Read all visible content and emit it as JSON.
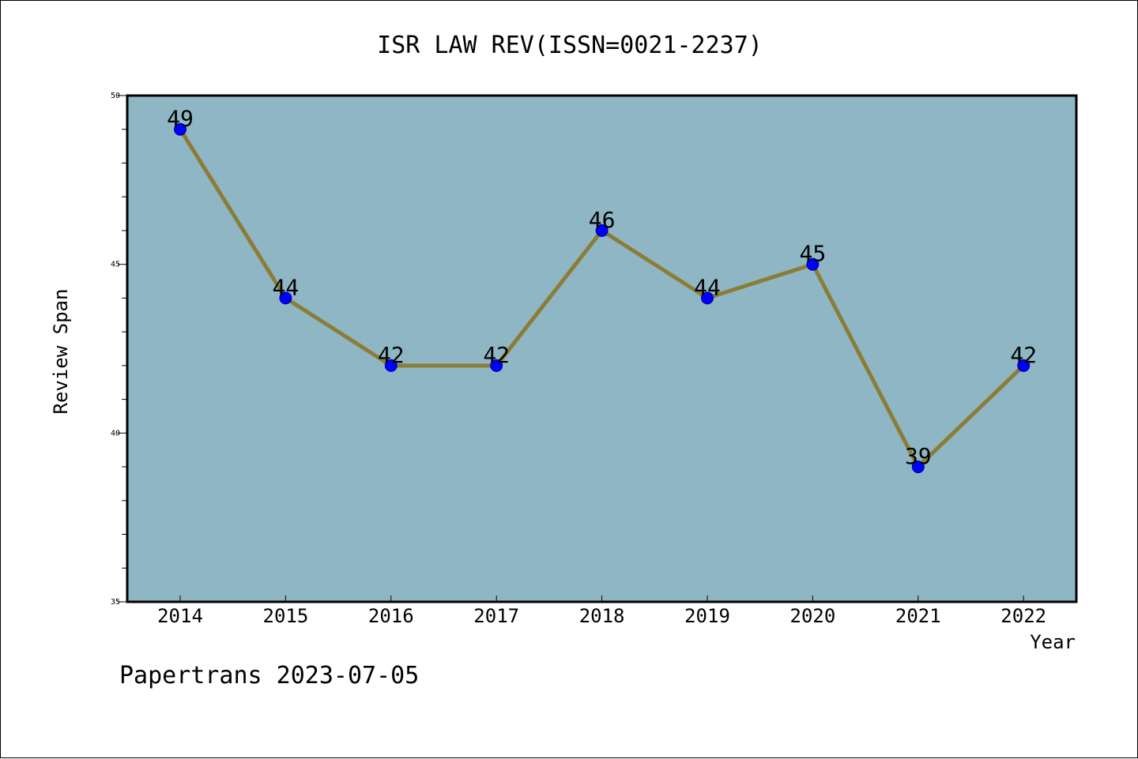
{
  "chart_data": {
    "type": "line",
    "title": "ISR LAW REV(ISSN=0021-2237)",
    "xlabel": "Year",
    "ylabel": "Review Span",
    "categories": [
      "2014",
      "2015",
      "2016",
      "2017",
      "2018",
      "2019",
      "2020",
      "2021",
      "2022"
    ],
    "values": [
      49,
      44,
      42,
      42,
      46,
      44,
      45,
      39,
      42
    ],
    "ylim": [
      35,
      50
    ],
    "yticks": [
      35,
      40,
      45,
      50
    ],
    "grid": false,
    "legend": "none",
    "data_labels": true
  },
  "footer": {
    "caption": "Papertrans 2023-07-05"
  },
  "colors": {
    "plot_background": "#8fb6c5",
    "line": "#8b7d35",
    "marker": "#0000ff",
    "marker_edge": "#00008b"
  }
}
